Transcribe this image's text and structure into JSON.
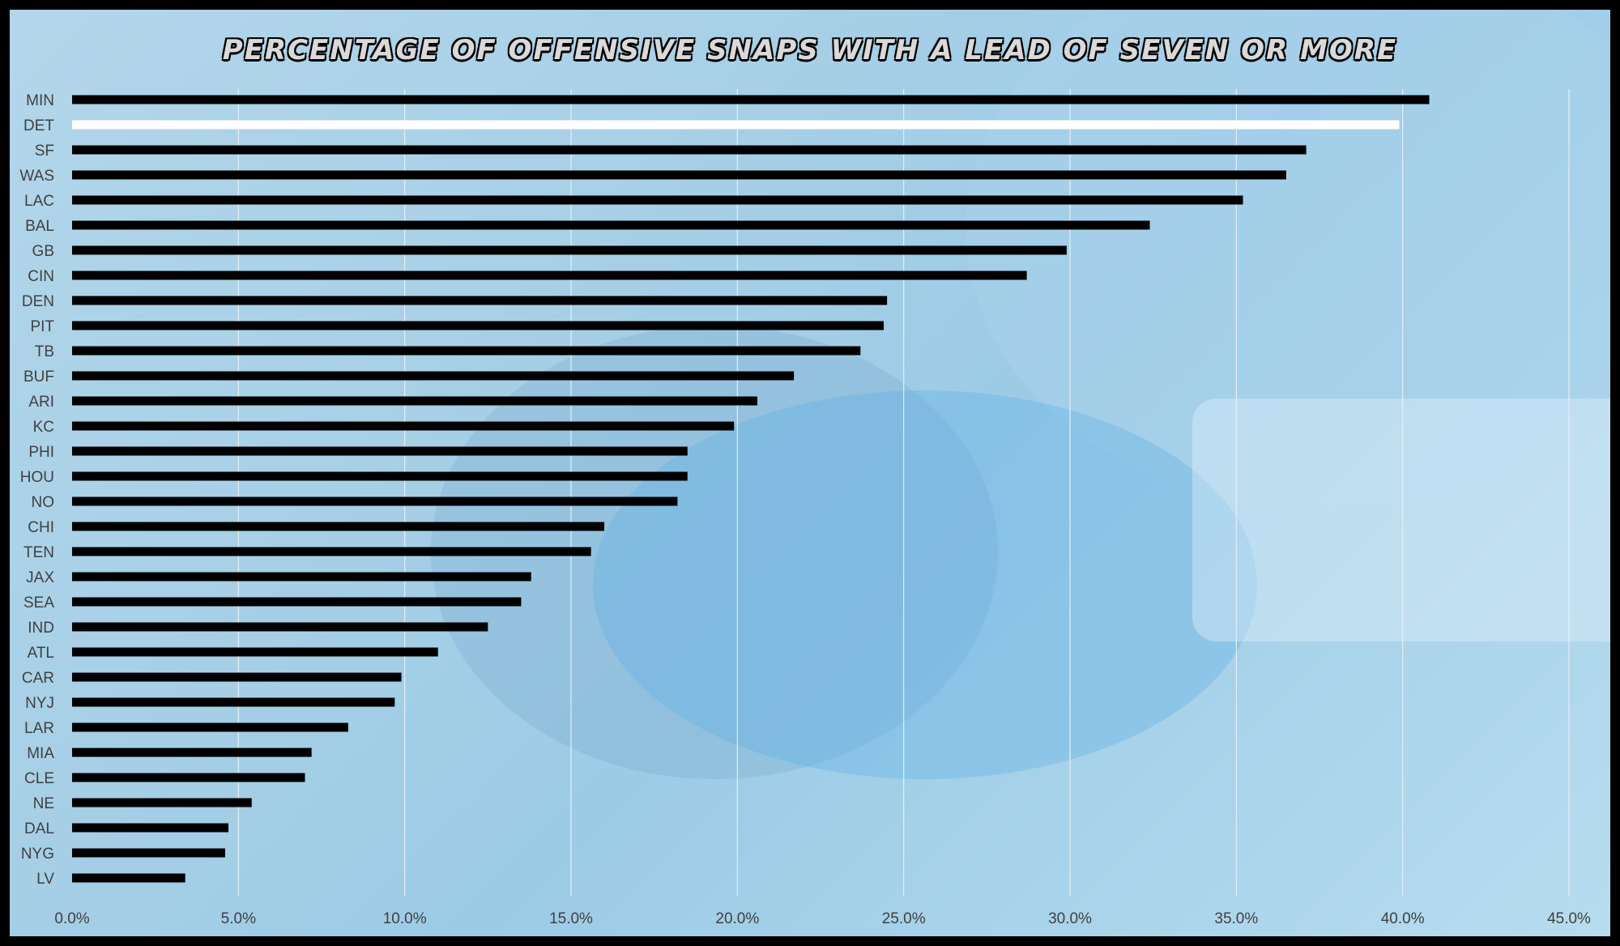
{
  "chart_data": {
    "type": "bar",
    "orientation": "horizontal",
    "title": "PERCENTAGE OF OFFENSIVE SNAPS WITH A LEAD OF SEVEN OR MORE",
    "xlabel": "",
    "ylabel": "",
    "xlim": [
      0,
      45
    ],
    "x_ticks": [
      "0.0%",
      "5.0%",
      "10.0%",
      "15.0%",
      "20.0%",
      "25.0%",
      "30.0%",
      "35.0%",
      "40.0%",
      "45.0%"
    ],
    "grid": "vertical",
    "legend": "none",
    "bar_color": "#000000",
    "highlight_color": "#ffffff",
    "highlight_category": "DET",
    "categories": [
      "MIN",
      "DET",
      "SF",
      "WAS",
      "LAC",
      "BAL",
      "GB",
      "CIN",
      "DEN",
      "PIT",
      "TB",
      "BUF",
      "ARI",
      "KC",
      "PHI",
      "HOU",
      "NO",
      "CHI",
      "TEN",
      "JAX",
      "SEA",
      "IND",
      "ATL",
      "CAR",
      "NYJ",
      "LAR",
      "MIA",
      "CLE",
      "NE",
      "DAL",
      "NYG",
      "LV"
    ],
    "values": [
      40.8,
      39.9,
      37.1,
      36.5,
      35.2,
      32.4,
      29.9,
      28.7,
      24.5,
      24.4,
      23.7,
      21.7,
      20.6,
      19.9,
      18.5,
      18.5,
      18.2,
      16.0,
      15.6,
      13.8,
      13.5,
      12.5,
      11.0,
      9.9,
      9.7,
      8.3,
      7.2,
      7.0,
      5.4,
      4.7,
      4.6,
      3.4
    ]
  }
}
